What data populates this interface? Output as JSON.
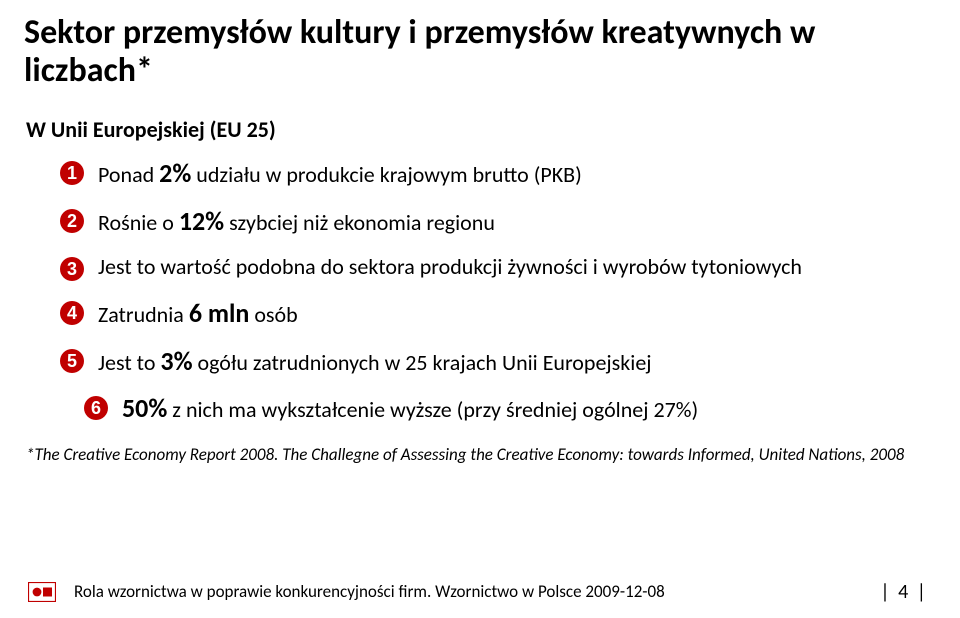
{
  "title": "Sektor przemysłów kultury i przemysłów kreatywnych w liczbach*",
  "subtitle": "W Unii Europejskiej (EU 25)",
  "bullet_color": "#c00000",
  "bullets": [
    {
      "pre": "Ponad ",
      "big": "2%",
      "post": " udziału w produkcie krajowym brutto (PKB)"
    },
    {
      "pre": "Rośnie o ",
      "big": "12%",
      "post": " szybciej niż ekonomia regionu"
    },
    {
      "pre": "Jest to wartość podobna do sektora produkcji żywności i wyrobów tytoniowych",
      "big": "",
      "post": ""
    },
    {
      "pre": "Zatrudnia ",
      "big": "6 mln",
      "post": " osób"
    },
    {
      "pre": "Jest to ",
      "big": "3%",
      "post": " ogółu zatrudnionych w 25 krajach Unii Europejskiej"
    },
    {
      "pre": "",
      "big": "50%",
      "post": " z nich ma wykształcenie wyższe (przy średniej ogólnej 27%)"
    }
  ],
  "footnote": "*The Creative Economy Report 2008. The Challegne of Assessing the Creative Economy: towards Informed, United Nations, 2008",
  "footer": "Rola wzornictwa w poprawie konkurencyjności firm. Wzornictwo w Polsce 2009-12-08",
  "page": "|  4  |",
  "logo_colors": {
    "border": "#c00000",
    "fill": "#c00000",
    "bg": "#ffffff"
  }
}
